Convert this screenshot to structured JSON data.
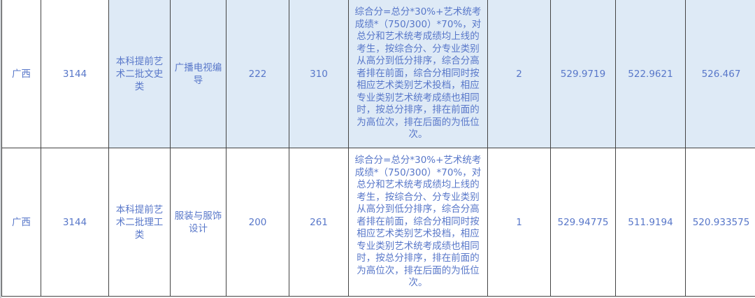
{
  "rows": [
    {
      "province": "广西",
      "code": "3144",
      "batch": "本科提前艺术二批文史类",
      "major": "广播电视编导",
      "col5": "222",
      "col6": "310",
      "rule": "综合分=总分*30%+艺术统考成绩*（750/300）*70%，对总分和艺术统考成绩均上线的考生，按综合分、分专业类别从高分到低分排序，综合分高者排在前面，综合分相同时按相应艺术类别艺术投档，相应专业类别艺术统考成绩也相同时，按总分排序，排在前面的为高位次，排在后面的为低位次。",
      "col8": "2",
      "col9": "529.9719",
      "col10": "522.9621",
      "col11": "526.467",
      "highlight_color": "#deeaf6"
    },
    {
      "province": "广西",
      "code": "3144",
      "batch": "本科提前艺术二批理工类",
      "major": "服装与服饰设计",
      "col5": "200",
      "col6": "261",
      "rule": "综合分=总分*30%+艺术统考成绩*（750/300）*70%，对总分和艺术统考成绩均上线的考生，按综合分、分专业类别从高分到低分排序，综合分高者排在前面，综合分相同时按相应艺术类别艺术投档，相应专业类别艺术统考成绩也相同时，按总分排序，排在前面的为高位次，排在后面的为低位次。",
      "col8": "1",
      "col9": "529.94775",
      "col10": "511.9194",
      "col11": "520.933575"
    }
  ]
}
